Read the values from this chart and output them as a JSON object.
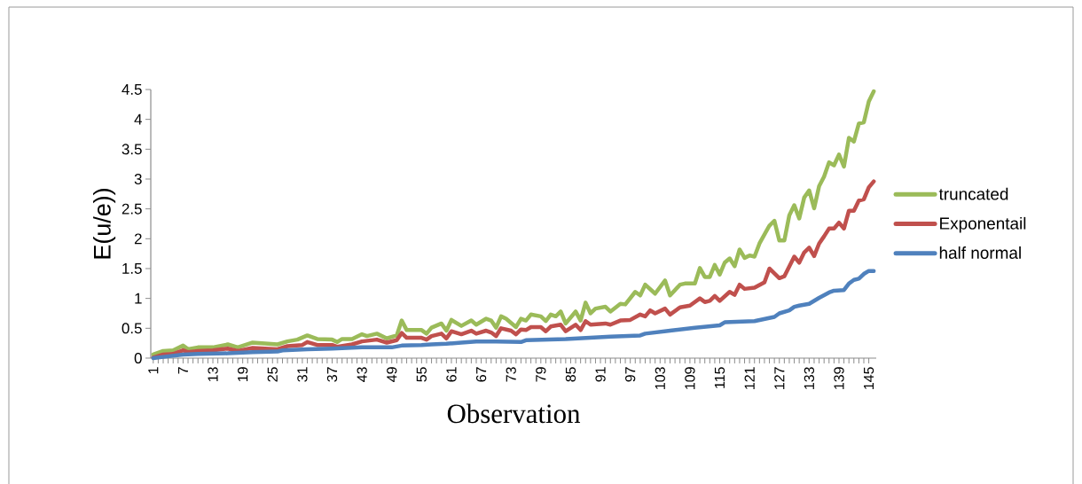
{
  "chart_data": {
    "type": "line",
    "xlabel": "Observation",
    "ylabel": "E(u/e))",
    "xlim": [
      0.5,
      146.5
    ],
    "xticks": [
      1,
      7,
      13,
      19,
      25,
      31,
      37,
      43,
      49,
      55,
      61,
      67,
      73,
      79,
      85,
      91,
      97,
      103,
      109,
      115,
      121,
      127,
      133,
      139,
      145
    ],
    "ylim": [
      0,
      4.5
    ],
    "yticks": [
      0,
      0.5,
      1,
      1.5,
      2,
      2.5,
      3,
      3.5,
      4,
      4.5
    ],
    "legend": "right",
    "series": [
      {
        "name": "truncated",
        "color": "#9bbb59",
        "x": [
          1,
          3,
          5,
          7,
          8,
          10,
          13,
          16,
          18,
          21,
          26,
          28,
          30,
          32,
          34,
          37,
          38,
          39,
          41,
          43,
          44,
          46,
          48,
          50,
          51,
          52,
          55,
          56,
          57,
          59,
          60,
          61,
          63,
          65,
          66,
          68,
          69,
          70,
          71,
          72,
          74,
          75,
          76,
          77,
          79,
          80,
          81,
          82,
          83,
          84,
          86,
          87,
          88,
          89,
          90,
          92,
          93,
          95,
          96,
          98,
          99,
          100,
          102,
          104,
          105,
          107,
          108,
          110,
          111,
          112,
          113,
          114,
          115,
          116,
          117,
          118,
          119,
          120,
          121,
          122,
          123,
          125,
          126,
          127,
          128,
          129,
          130,
          131,
          132,
          133,
          134,
          135,
          136,
          137,
          138,
          139,
          140,
          141,
          142,
          143,
          144,
          145,
          146
        ],
        "values": [
          0.06,
          0.12,
          0.13,
          0.21,
          0.15,
          0.18,
          0.18,
          0.23,
          0.18,
          0.26,
          0.23,
          0.28,
          0.31,
          0.38,
          0.32,
          0.31,
          0.27,
          0.32,
          0.32,
          0.4,
          0.37,
          0.41,
          0.33,
          0.38,
          0.63,
          0.47,
          0.47,
          0.41,
          0.51,
          0.58,
          0.46,
          0.64,
          0.54,
          0.63,
          0.56,
          0.66,
          0.63,
          0.51,
          0.7,
          0.66,
          0.52,
          0.66,
          0.63,
          0.73,
          0.7,
          0.62,
          0.73,
          0.7,
          0.78,
          0.58,
          0.78,
          0.63,
          0.93,
          0.75,
          0.83,
          0.86,
          0.78,
          0.91,
          0.9,
          1.11,
          1.05,
          1.23,
          1.08,
          1.3,
          1.05,
          1.23,
          1.25,
          1.25,
          1.51,
          1.36,
          1.36,
          1.56,
          1.4,
          1.6,
          1.67,
          1.54,
          1.82,
          1.68,
          1.72,
          1.7,
          1.92,
          2.22,
          2.3,
          1.97,
          1.97,
          2.39,
          2.56,
          2.34,
          2.69,
          2.81,
          2.51,
          2.88,
          3.04,
          3.28,
          3.23,
          3.41,
          3.21,
          3.69,
          3.63,
          3.93,
          3.95,
          4.3,
          4.47
        ]
      },
      {
        "name": "Exponentail",
        "color": "#c0504d",
        "x": [
          1,
          3,
          5,
          7,
          8,
          10,
          13,
          16,
          18,
          21,
          26,
          28,
          31,
          32,
          34,
          37,
          38,
          41,
          43,
          46,
          48,
          50,
          51,
          52,
          55,
          56,
          57,
          59,
          60,
          61,
          63,
          65,
          66,
          68,
          69,
          70,
          71,
          73,
          74,
          75,
          76,
          77,
          79,
          80,
          81,
          83,
          84,
          86,
          87,
          88,
          89,
          92,
          93,
          95,
          97,
          99,
          100,
          101,
          102,
          104,
          105,
          107,
          109,
          111,
          112,
          113,
          114,
          115,
          117,
          118,
          119,
          120,
          122,
          124,
          125,
          127,
          128,
          130,
          131,
          132,
          133,
          134,
          135,
          136,
          137,
          138,
          139,
          140,
          141,
          142,
          143,
          144,
          145,
          146
        ],
        "values": [
          0.01,
          0.06,
          0.07,
          0.13,
          0.1,
          0.12,
          0.13,
          0.16,
          0.12,
          0.17,
          0.15,
          0.2,
          0.22,
          0.27,
          0.22,
          0.22,
          0.19,
          0.23,
          0.28,
          0.31,
          0.26,
          0.3,
          0.42,
          0.34,
          0.34,
          0.31,
          0.37,
          0.41,
          0.33,
          0.45,
          0.4,
          0.46,
          0.41,
          0.46,
          0.43,
          0.37,
          0.5,
          0.46,
          0.4,
          0.48,
          0.47,
          0.52,
          0.52,
          0.45,
          0.53,
          0.56,
          0.45,
          0.56,
          0.47,
          0.62,
          0.56,
          0.58,
          0.56,
          0.63,
          0.64,
          0.73,
          0.7,
          0.8,
          0.75,
          0.83,
          0.73,
          0.85,
          0.88,
          1.0,
          0.94,
          0.96,
          1.04,
          0.96,
          1.11,
          1.06,
          1.23,
          1.16,
          1.18,
          1.27,
          1.5,
          1.34,
          1.37,
          1.7,
          1.6,
          1.77,
          1.85,
          1.71,
          1.92,
          2.04,
          2.17,
          2.17,
          2.27,
          2.17,
          2.47,
          2.47,
          2.64,
          2.66,
          2.86,
          2.96
        ]
      },
      {
        "name": "half normal",
        "color": "#4f81bd",
        "x": [
          1,
          3,
          7,
          10,
          16,
          21,
          26,
          27,
          32,
          37,
          43,
          49,
          51,
          55,
          57,
          60,
          63,
          66,
          70,
          75,
          76,
          84,
          93,
          99,
          100,
          105,
          110,
          115,
          116,
          122,
          126,
          127,
          129,
          130,
          131,
          133,
          135,
          137,
          138,
          140,
          141,
          142,
          143,
          144,
          145,
          146
        ],
        "values": [
          0.0,
          0.02,
          0.06,
          0.07,
          0.08,
          0.1,
          0.11,
          0.13,
          0.15,
          0.16,
          0.18,
          0.18,
          0.21,
          0.22,
          0.23,
          0.24,
          0.26,
          0.28,
          0.28,
          0.27,
          0.3,
          0.32,
          0.36,
          0.38,
          0.41,
          0.46,
          0.51,
          0.55,
          0.6,
          0.62,
          0.69,
          0.75,
          0.8,
          0.86,
          0.88,
          0.91,
          1.01,
          1.1,
          1.13,
          1.14,
          1.25,
          1.31,
          1.33,
          1.41,
          1.46,
          1.46
        ]
      }
    ]
  }
}
